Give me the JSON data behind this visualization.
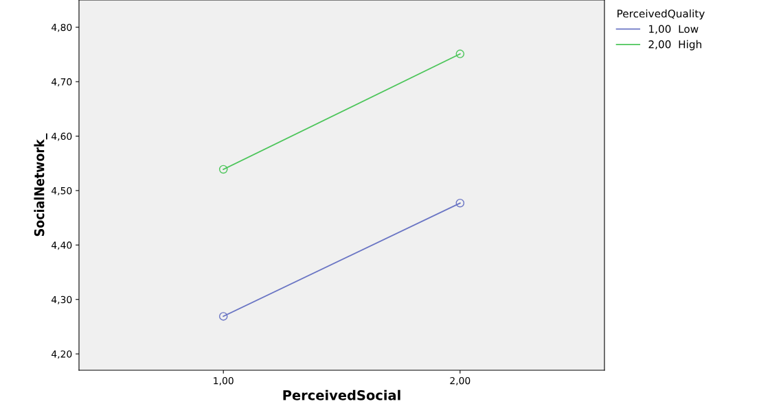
{
  "chart_data": {
    "type": "line",
    "xlabel": "PerceivedSocial",
    "ylabel": "SocialNetwork_",
    "legend_title": "PerceivedQuality",
    "x": [
      1,
      2
    ],
    "series": [
      {
        "name": "1,00  Low",
        "color": "#6a75c4",
        "values": [
          4.269,
          4.477
        ]
      },
      {
        "name": "2,00  High",
        "color": "#4cc55a",
        "values": [
          4.539,
          4.751
        ]
      }
    ],
    "xlim": [
      0.39,
      2.61
    ],
    "xticks": [
      {
        "value": 1,
        "label": "1,00"
      },
      {
        "value": 2,
        "label": "2,00"
      }
    ],
    "ylim": [
      4.17,
      4.85
    ],
    "yticks": [
      {
        "value": 4.2,
        "label": "4,20"
      },
      {
        "value": 4.3,
        "label": "4,30"
      },
      {
        "value": 4.4,
        "label": "4,40"
      },
      {
        "value": 4.5,
        "label": "4,50"
      },
      {
        "value": 4.6,
        "label": "4,60"
      },
      {
        "value": 4.7,
        "label": "4,70"
      },
      {
        "value": 4.8,
        "label": "4,80"
      }
    ],
    "grid": false,
    "legend": "top right",
    "marker": "circle",
    "line_style": "solid"
  }
}
